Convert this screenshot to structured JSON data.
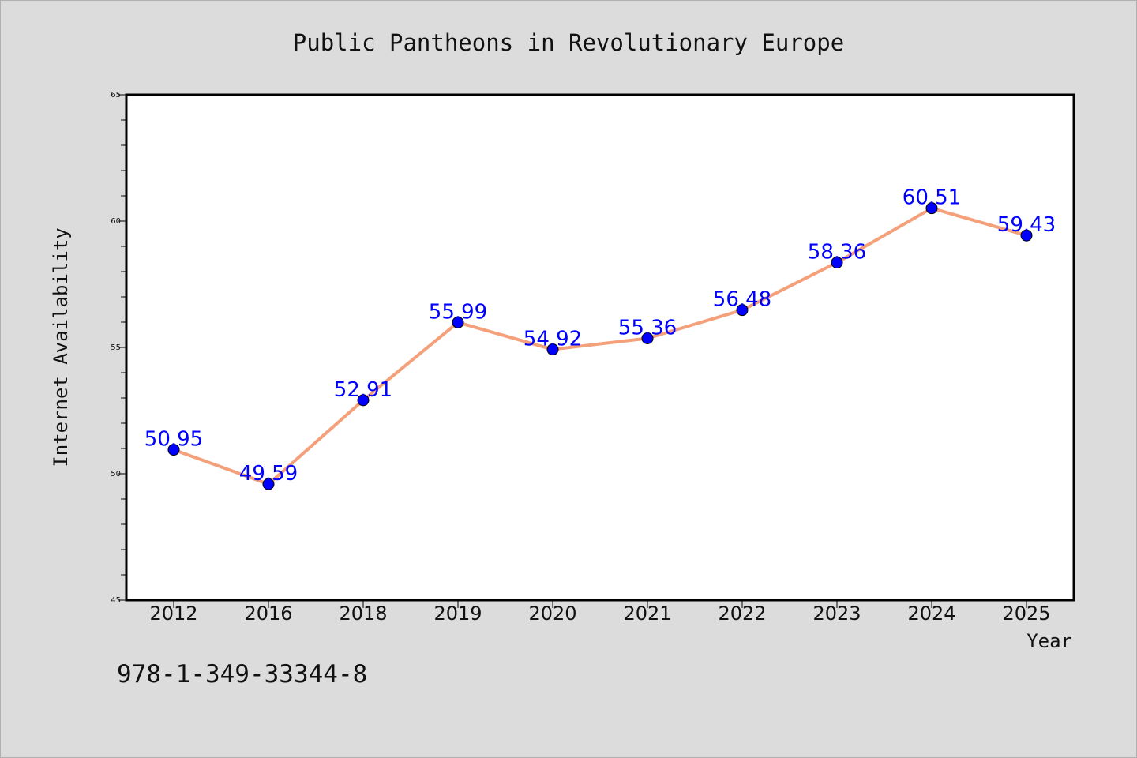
{
  "chart_data": {
    "type": "line",
    "title": "Public Pantheons in Revolutionary Europe",
    "xlabel": "Year",
    "ylabel": "Internet Availability",
    "categories": [
      "2012",
      "2016",
      "2018",
      "2019",
      "2020",
      "2021",
      "2022",
      "2023",
      "2024",
      "2025"
    ],
    "series": [
      {
        "values": [
          50.95,
          49.59,
          52.91,
          55.99,
          54.92,
          55.36,
          56.48,
          58.36,
          60.51,
          59.43
        ],
        "data_labels": [
          "50.95",
          "49.59",
          "52.91",
          "55.99",
          "54.92",
          "55.36",
          "56.48",
          "58.36",
          "60.51",
          "59.43"
        ],
        "line_color": "#f4a07a",
        "marker_color": "#0000ff"
      }
    ],
    "ylim": [
      45,
      65
    ],
    "yticks": [
      "45",
      "50",
      "55",
      "60",
      "65"
    ],
    "grid": false,
    "legend": "none"
  },
  "annotation": "978-1-349-33344-8",
  "colors": {
    "background": "#dcdcdc",
    "plot_background": "#ffffff",
    "line": "#f4a07a",
    "marker": "#0000ff",
    "data_label": "#0000ff"
  }
}
